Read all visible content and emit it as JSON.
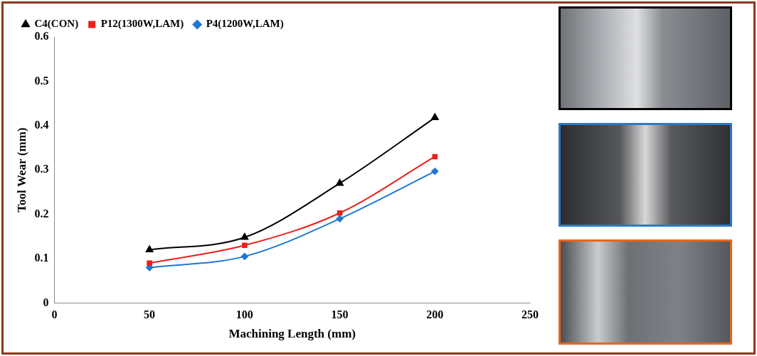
{
  "chart_data": {
    "type": "line",
    "x_label": "Machining Length (mm)",
    "y_label": "Tool Wear (mm)",
    "x": [
      50,
      100,
      150,
      200
    ],
    "series": [
      {
        "name": "C4(CON)",
        "color": "#000000",
        "marker": "triangle",
        "values": [
          0.12,
          0.148,
          0.27,
          0.418
        ]
      },
      {
        "name": "P12(1300W,LAM)",
        "color": "#e8221b",
        "marker": "square",
        "values": [
          0.09,
          0.13,
          0.203,
          0.33
        ]
      },
      {
        "name": "P4(1200W,LAM)",
        "color": "#1f77d0",
        "marker": "diamond",
        "values": [
          0.08,
          0.105,
          0.19,
          0.297
        ]
      }
    ],
    "xlim": [
      0,
      250
    ],
    "xticks": [
      0,
      50,
      100,
      150,
      200,
      250
    ],
    "ylim": [
      0,
      0.6
    ],
    "yticks": [
      0,
      0.1,
      0.2,
      0.3,
      0.4,
      0.5,
      0.6
    ],
    "grid": false,
    "legend": "top"
  }
}
